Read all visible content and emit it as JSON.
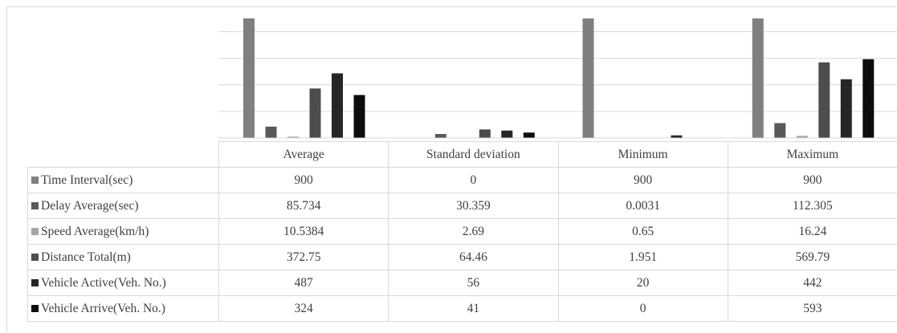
{
  "chart_data": {
    "type": "bar",
    "categories": [
      "Average",
      "Standard deviation",
      "Minimum",
      "Maximum"
    ],
    "series": [
      {
        "name": "Time Interval(sec)",
        "values": [
          900,
          0,
          900,
          900
        ],
        "display": [
          "900",
          "0",
          "900",
          "900"
        ],
        "color": "#7f7f7f"
      },
      {
        "name": "Delay Average(sec)",
        "values": [
          85.734,
          30.359,
          0.0031,
          112.305
        ],
        "display": [
          "85.734",
          "30.359",
          "0.0031",
          "112.305"
        ],
        "color": "#595959"
      },
      {
        "name": "Speed Average(km/h)",
        "values": [
          10.5384,
          2.69,
          0.65,
          16.24
        ],
        "display": [
          "10.5384",
          "2.69",
          "0.65",
          "16.24"
        ],
        "color": "#a6a6a6"
      },
      {
        "name": "Distance Total(m)",
        "values": [
          372.75,
          64.46,
          1.951,
          569.79
        ],
        "display": [
          "372.75",
          "64.46",
          "1.951",
          "569.79"
        ],
        "color": "#4d4d4d"
      },
      {
        "name": "Vehicle Active(Veh. No.)",
        "values": [
          487,
          56,
          20,
          442
        ],
        "display": [
          "487",
          "56",
          "20",
          "442"
        ],
        "color": "#262626"
      },
      {
        "name": "Vehicle Arrive(Veh. No.)",
        "values": [
          324,
          41,
          0,
          593
        ],
        "display": [
          "324",
          "41",
          "0",
          "593"
        ],
        "color": "#0d0d0d"
      }
    ],
    "ylim": [
      0,
      900
    ],
    "grid": true,
    "legend": "table-left",
    "title": "",
    "xlabel": "",
    "ylabel": ""
  }
}
